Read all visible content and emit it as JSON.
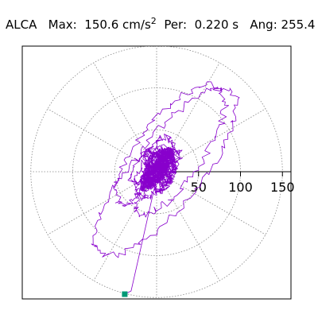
{
  "header": {
    "station": "ALCA",
    "max_label": "Max:",
    "max_value": "150.6",
    "max_unit": "cm/s",
    "max_unit_exp": "2",
    "per_label": "Per:",
    "per_value": "0.220 s",
    "ang_label": "Ang:",
    "ang_value": "255.4"
  },
  "colors": {
    "trace": "#8800cc",
    "marker": "#009977",
    "grid": "#888888",
    "frame": "#000000"
  },
  "chart_data": {
    "type": "polar-orbit",
    "units": "cm/s^2",
    "radial_ticks": [
      50,
      100,
      150
    ],
    "radial_max": 160,
    "max_amplitude": 150.6,
    "period_s": 0.22,
    "peak_angle_deg": 255.4,
    "peak_point": {
      "x": -38,
      "y": -146
    },
    "radial_grid_spacing_deg": 30,
    "grid": true
  }
}
